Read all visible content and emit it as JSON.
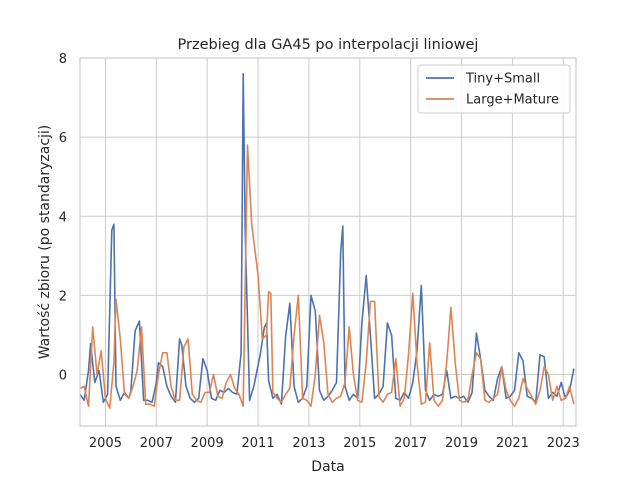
{
  "chart_data": {
    "type": "line",
    "title": "Przebieg dla GA45 po interpolacji liniowej",
    "xlabel": "Data",
    "ylabel": "Wartość zbioru (po standaryzacji)",
    "x_ticks": [
      "2005",
      "2007",
      "2009",
      "2011",
      "2013",
      "2015",
      "2017",
      "2019",
      "2021",
      "2023"
    ],
    "y_ticks": [
      "0",
      "2",
      "4",
      "6",
      "8"
    ],
    "xlim": [
      "2004-01",
      "2023-07"
    ],
    "ylim": [
      -1.3,
      8.0
    ],
    "grid": true,
    "legend_position": "top-right",
    "series": [
      {
        "name": "Tiny+Small",
        "color": "#4c72b0",
        "points": [
          [
            "2004-01",
            -0.5
          ],
          [
            "2004-03",
            -0.65
          ],
          [
            "2004-05",
            0.1
          ],
          [
            "2004-06",
            0.78
          ],
          [
            "2004-08",
            -0.2
          ],
          [
            "2004-10",
            0.1
          ],
          [
            "2004-12",
            -0.7
          ],
          [
            "2005-02",
            -0.5
          ],
          [
            "2005-04",
            3.65
          ],
          [
            "2005-05",
            3.8
          ],
          [
            "2005-06",
            -0.3
          ],
          [
            "2005-08",
            -0.65
          ],
          [
            "2005-10",
            -0.45
          ],
          [
            "2005-12",
            -0.6
          ],
          [
            "2006-01",
            -0.4
          ],
          [
            "2006-03",
            1.1
          ],
          [
            "2006-05",
            1.35
          ],
          [
            "2006-07",
            -0.65
          ],
          [
            "2006-09",
            -0.65
          ],
          [
            "2006-11",
            -0.7
          ],
          [
            "2007-01",
            -0.2
          ],
          [
            "2007-02",
            0.3
          ],
          [
            "2007-04",
            0.2
          ],
          [
            "2007-06",
            -0.3
          ],
          [
            "2007-08",
            -0.55
          ],
          [
            "2007-10",
            -0.7
          ],
          [
            "2007-12",
            0.9
          ],
          [
            "2008-01",
            0.75
          ],
          [
            "2008-03",
            -0.3
          ],
          [
            "2008-05",
            -0.6
          ],
          [
            "2008-07",
            -0.7
          ],
          [
            "2008-09",
            -0.6
          ],
          [
            "2008-11",
            0.4
          ],
          [
            "2009-01",
            0.1
          ],
          [
            "2009-03",
            -0.6
          ],
          [
            "2009-05",
            -0.65
          ],
          [
            "2009-07",
            -0.4
          ],
          [
            "2009-09",
            -0.45
          ],
          [
            "2009-11",
            -0.35
          ],
          [
            "2010-01",
            -0.45
          ],
          [
            "2010-03",
            -0.5
          ],
          [
            "2010-05",
            0.55
          ],
          [
            "2010-06",
            7.6
          ],
          [
            "2010-07",
            3.5
          ],
          [
            "2010-09",
            -0.65
          ],
          [
            "2010-11",
            -0.3
          ],
          [
            "2011-02",
            0.5
          ],
          [
            "2011-04",
            1.2
          ],
          [
            "2011-05",
            1.3
          ],
          [
            "2011-06",
            -0.15
          ],
          [
            "2011-08",
            -0.6
          ],
          [
            "2011-10",
            -0.5
          ],
          [
            "2011-12",
            -0.75
          ],
          [
            "2012-02",
            0.95
          ],
          [
            "2012-04",
            1.8
          ],
          [
            "2012-06",
            -0.3
          ],
          [
            "2012-08",
            -0.7
          ],
          [
            "2012-10",
            -0.6
          ],
          [
            "2012-12",
            -0.3
          ],
          [
            "2013-02",
            2.0
          ],
          [
            "2013-04",
            1.6
          ],
          [
            "2013-06",
            -0.4
          ],
          [
            "2013-08",
            -0.65
          ],
          [
            "2013-10",
            -0.55
          ],
          [
            "2013-12",
            -0.4
          ],
          [
            "2014-02",
            -0.2
          ],
          [
            "2014-04",
            3.1
          ],
          [
            "2014-05",
            3.75
          ],
          [
            "2014-06",
            -0.3
          ],
          [
            "2014-08",
            -0.65
          ],
          [
            "2014-10",
            -0.5
          ],
          [
            "2014-12",
            -0.6
          ],
          [
            "2015-02",
            1.3
          ],
          [
            "2015-04",
            2.5
          ],
          [
            "2015-06",
            1.0
          ],
          [
            "2015-08",
            -0.6
          ],
          [
            "2015-10",
            -0.5
          ],
          [
            "2015-12",
            -0.3
          ],
          [
            "2016-02",
            1.3
          ],
          [
            "2016-04",
            1.0
          ],
          [
            "2016-06",
            -0.6
          ],
          [
            "2016-08",
            -0.65
          ],
          [
            "2016-10",
            -0.45
          ],
          [
            "2016-12",
            -0.6
          ],
          [
            "2017-02",
            -0.2
          ],
          [
            "2017-04",
            0.6
          ],
          [
            "2017-06",
            2.25
          ],
          [
            "2017-08",
            -0.4
          ],
          [
            "2017-10",
            -0.65
          ],
          [
            "2017-12",
            -0.5
          ],
          [
            "2018-02",
            -0.55
          ],
          [
            "2018-04",
            -0.5
          ],
          [
            "2018-06",
            0.1
          ],
          [
            "2018-08",
            -0.6
          ],
          [
            "2018-10",
            -0.55
          ],
          [
            "2018-12",
            -0.6
          ],
          [
            "2019-02",
            -0.55
          ],
          [
            "2019-04",
            -0.7
          ],
          [
            "2019-06",
            -0.45
          ],
          [
            "2019-08",
            1.05
          ],
          [
            "2019-10",
            0.4
          ],
          [
            "2019-12",
            -0.4
          ],
          [
            "2020-02",
            -0.55
          ],
          [
            "2020-04",
            -0.65
          ],
          [
            "2020-06",
            -0.1
          ],
          [
            "2020-08",
            0.2
          ],
          [
            "2020-10",
            -0.6
          ],
          [
            "2020-12",
            -0.55
          ],
          [
            "2021-02",
            -0.4
          ],
          [
            "2021-04",
            0.55
          ],
          [
            "2021-06",
            0.35
          ],
          [
            "2021-08",
            -0.55
          ],
          [
            "2021-10",
            -0.6
          ],
          [
            "2021-12",
            -0.7
          ],
          [
            "2022-02",
            0.5
          ],
          [
            "2022-04",
            0.45
          ],
          [
            "2022-06",
            -0.6
          ],
          [
            "2022-08",
            -0.45
          ],
          [
            "2022-10",
            -0.55
          ],
          [
            "2022-12",
            -0.2
          ],
          [
            "2023-02",
            -0.6
          ],
          [
            "2023-04",
            -0.4
          ],
          [
            "2023-06",
            0.15
          ]
        ]
      },
      {
        "name": "Large+Mature",
        "color": "#dd8452",
        "points": [
          [
            "2004-01",
            -0.35
          ],
          [
            "2004-03",
            -0.3
          ],
          [
            "2004-05",
            -0.8
          ],
          [
            "2004-07",
            1.2
          ],
          [
            "2004-09",
            0.0
          ],
          [
            "2004-11",
            0.6
          ],
          [
            "2005-01",
            -0.6
          ],
          [
            "2005-03",
            -0.85
          ],
          [
            "2005-05",
            0.3
          ],
          [
            "2005-06",
            1.9
          ],
          [
            "2005-08",
            0.9
          ],
          [
            "2005-10",
            -0.5
          ],
          [
            "2005-12",
            -0.6
          ],
          [
            "2006-02",
            -0.3
          ],
          [
            "2006-04",
            0.1
          ],
          [
            "2006-06",
            1.2
          ],
          [
            "2006-08",
            -0.75
          ],
          [
            "2006-10",
            -0.75
          ],
          [
            "2006-12",
            -0.8
          ],
          [
            "2007-02",
            0.0
          ],
          [
            "2007-04",
            0.55
          ],
          [
            "2007-06",
            0.55
          ],
          [
            "2007-08",
            -0.3
          ],
          [
            "2007-10",
            -0.65
          ],
          [
            "2007-12",
            -0.65
          ],
          [
            "2008-02",
            0.7
          ],
          [
            "2008-04",
            0.9
          ],
          [
            "2008-06",
            -0.5
          ],
          [
            "2008-08",
            -0.65
          ],
          [
            "2008-10",
            -0.7
          ],
          [
            "2008-12",
            -0.45
          ],
          [
            "2009-02",
            -0.45
          ],
          [
            "2009-04",
            0.0
          ],
          [
            "2009-06",
            -0.55
          ],
          [
            "2009-08",
            -0.6
          ],
          [
            "2009-10",
            -0.2
          ],
          [
            "2009-12",
            0.0
          ],
          [
            "2010-02",
            -0.35
          ],
          [
            "2010-04",
            -0.5
          ],
          [
            "2010-06",
            -0.8
          ],
          [
            "2010-08",
            5.8
          ],
          [
            "2010-10",
            3.8
          ],
          [
            "2011-01",
            2.5
          ],
          [
            "2011-03",
            0.9
          ],
          [
            "2011-05",
            1.0
          ],
          [
            "2011-06",
            2.1
          ],
          [
            "2011-07",
            2.05
          ],
          [
            "2011-08",
            -0.45
          ],
          [
            "2011-10",
            -0.6
          ],
          [
            "2011-12",
            -0.7
          ],
          [
            "2012-02",
            -0.5
          ],
          [
            "2012-04",
            -0.35
          ],
          [
            "2012-06",
            1.0
          ],
          [
            "2012-08",
            2.0
          ],
          [
            "2012-10",
            -0.6
          ],
          [
            "2012-12",
            -0.65
          ],
          [
            "2013-02",
            -0.8
          ],
          [
            "2013-04",
            0.0
          ],
          [
            "2013-06",
            1.5
          ],
          [
            "2013-08",
            0.8
          ],
          [
            "2013-10",
            -0.5
          ],
          [
            "2013-12",
            -0.7
          ],
          [
            "2014-02",
            -0.6
          ],
          [
            "2014-04",
            -0.55
          ],
          [
            "2014-06",
            -0.2
          ],
          [
            "2014-08",
            1.2
          ],
          [
            "2014-10",
            0.0
          ],
          [
            "2014-12",
            -0.65
          ],
          [
            "2015-02",
            -0.7
          ],
          [
            "2015-04",
            0.3
          ],
          [
            "2015-06",
            1.85
          ],
          [
            "2015-08",
            1.85
          ],
          [
            "2015-10",
            -0.55
          ],
          [
            "2015-12",
            -0.7
          ],
          [
            "2016-02",
            -0.5
          ],
          [
            "2016-04",
            -0.45
          ],
          [
            "2016-06",
            0.4
          ],
          [
            "2016-08",
            -0.8
          ],
          [
            "2016-10",
            -0.6
          ],
          [
            "2016-12",
            0.5
          ],
          [
            "2017-02",
            2.05
          ],
          [
            "2017-04",
            0.3
          ],
          [
            "2017-06",
            -0.75
          ],
          [
            "2017-08",
            -0.7
          ],
          [
            "2017-10",
            0.8
          ],
          [
            "2017-12",
            -0.65
          ],
          [
            "2018-02",
            -0.8
          ],
          [
            "2018-04",
            -0.65
          ],
          [
            "2018-06",
            0.3
          ],
          [
            "2018-08",
            1.7
          ],
          [
            "2018-10",
            0.3
          ],
          [
            "2018-12",
            -0.65
          ],
          [
            "2019-02",
            -0.7
          ],
          [
            "2019-04",
            -0.65
          ],
          [
            "2019-06",
            0.0
          ],
          [
            "2019-08",
            0.55
          ],
          [
            "2019-10",
            0.4
          ],
          [
            "2019-12",
            -0.65
          ],
          [
            "2020-02",
            -0.7
          ],
          [
            "2020-04",
            -0.6
          ],
          [
            "2020-06",
            -0.5
          ],
          [
            "2020-08",
            0.2
          ],
          [
            "2020-10",
            -0.4
          ],
          [
            "2020-12",
            -0.65
          ],
          [
            "2021-02",
            -0.8
          ],
          [
            "2021-04",
            -0.6
          ],
          [
            "2021-06",
            -0.1
          ],
          [
            "2021-08",
            -0.35
          ],
          [
            "2021-10",
            -0.55
          ],
          [
            "2021-12",
            -0.75
          ],
          [
            "2022-02",
            -0.4
          ],
          [
            "2022-04",
            0.2
          ],
          [
            "2022-06",
            0.0
          ],
          [
            "2022-08",
            -0.65
          ],
          [
            "2022-10",
            -0.3
          ],
          [
            "2022-12",
            -0.65
          ],
          [
            "2023-02",
            -0.6
          ],
          [
            "2023-04",
            -0.3
          ],
          [
            "2023-06",
            -0.75
          ]
        ]
      }
    ]
  }
}
